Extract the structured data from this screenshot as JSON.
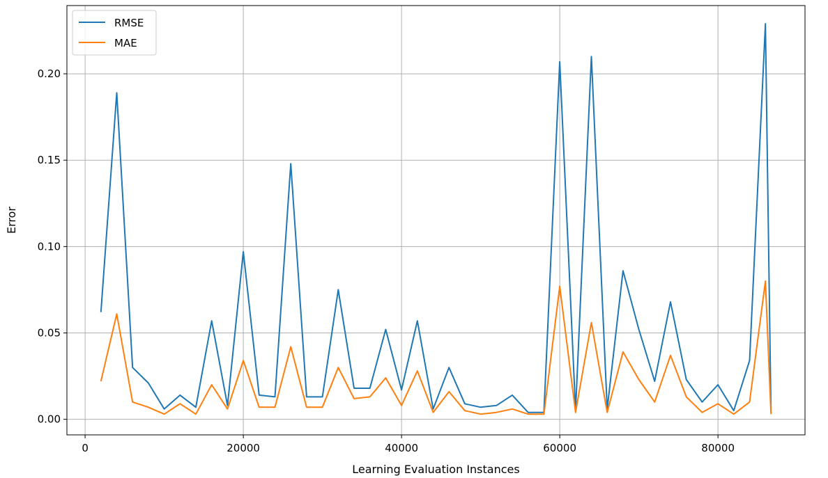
{
  "chart_data": {
    "type": "line",
    "title": "",
    "xlabel": "Learning Evaluation Instances",
    "ylabel": "Error",
    "xlim": [
      -2300,
      91000
    ],
    "ylim": [
      -0.009,
      0.2395
    ],
    "xticks": [
      0,
      20000,
      40000,
      60000,
      80000
    ],
    "xtick_labels": [
      "0",
      "20000",
      "40000",
      "60000",
      "80000"
    ],
    "yticks": [
      0.0,
      0.05,
      0.1,
      0.15,
      0.2
    ],
    "ytick_labels": [
      "0.00",
      "0.05",
      "0.10",
      "0.15",
      "0.20"
    ],
    "grid": true,
    "legend": "top-left",
    "x": [
      2000,
      4000,
      6000,
      8000,
      10000,
      12000,
      14000,
      16000,
      18000,
      20000,
      22000,
      24000,
      26000,
      28000,
      30000,
      32000,
      34000,
      36000,
      38000,
      40000,
      42000,
      44000,
      46000,
      48000,
      50000,
      52000,
      54000,
      56000,
      58000,
      60000,
      62000,
      64000,
      66000,
      68000,
      70000,
      72000,
      74000,
      76000,
      78000,
      80000,
      82000,
      84000,
      86000,
      86700
    ],
    "series": [
      {
        "name": "RMSE",
        "color": "#1f77b4",
        "values": [
          0.062,
          0.189,
          0.03,
          0.021,
          0.006,
          0.014,
          0.007,
          0.057,
          0.008,
          0.097,
          0.014,
          0.013,
          0.148,
          0.013,
          0.013,
          0.075,
          0.018,
          0.018,
          0.052,
          0.017,
          0.057,
          0.006,
          0.03,
          0.009,
          0.007,
          0.008,
          0.014,
          0.004,
          0.004,
          0.207,
          0.005,
          0.21,
          0.006,
          0.086,
          0.052,
          0.022,
          0.068,
          0.023,
          0.01,
          0.02,
          0.005,
          0.034,
          0.229,
          0.004
        ]
      },
      {
        "name": "MAE",
        "color": "#ff7f0e",
        "values": [
          0.022,
          0.061,
          0.01,
          0.007,
          0.003,
          0.009,
          0.003,
          0.02,
          0.006,
          0.034,
          0.007,
          0.007,
          0.042,
          0.007,
          0.007,
          0.03,
          0.012,
          0.013,
          0.024,
          0.008,
          0.028,
          0.004,
          0.016,
          0.005,
          0.003,
          0.004,
          0.006,
          0.003,
          0.003,
          0.077,
          0.004,
          0.056,
          0.004,
          0.039,
          0.023,
          0.01,
          0.037,
          0.013,
          0.004,
          0.009,
          0.003,
          0.01,
          0.08,
          0.003
        ]
      }
    ]
  }
}
